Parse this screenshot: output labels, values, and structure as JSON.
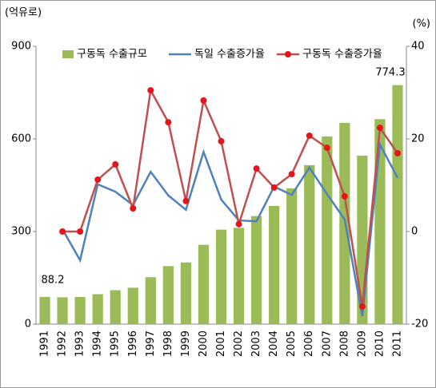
{
  "chart_data": {
    "type": "combo",
    "y_label": "(억유로)",
    "y2_label": "(%)",
    "categories": [
      "1991",
      "1992",
      "1993",
      "1994",
      "1995",
      "1996",
      "1997",
      "1998",
      "1999",
      "2000",
      "2001",
      "2002",
      "2003",
      "2004",
      "2005",
      "2006",
      "2007",
      "2008",
      "2009",
      "2010",
      "2011"
    ],
    "series": [
      {
        "name": "구동독 수출규모",
        "type": "bar",
        "color": "#9bbb59",
        "values": [
          88.2,
          87,
          88,
          97,
          110,
          118,
          152,
          188,
          200,
          257,
          306,
          312,
          350,
          383,
          440,
          515,
          608,
          652,
          546,
          664,
          774.3
        ]
      },
      {
        "name": "독일 수출증가율",
        "type": "line",
        "axis": "y2",
        "color": "#4f81bd",
        "values": [
          null,
          0.5,
          -6.2,
          10.2,
          8.6,
          5.7,
          12.9,
          7.8,
          4.7,
          17.2,
          6.9,
          2.4,
          2.2,
          9.7,
          7.9,
          13.8,
          8.1,
          2.6,
          -18.3,
          18.8,
          11.6
        ]
      },
      {
        "name": "구동독 수출증가율",
        "type": "line",
        "axis": "y2",
        "color": "#c0504d",
        "marker_color": "#e8141b",
        "values": [
          null,
          0,
          0,
          11.2,
          14.5,
          5,
          30.5,
          23.6,
          6.6,
          28.3,
          19.5,
          1.6,
          13.6,
          9.5,
          12.4,
          20.7,
          18.1,
          7.6,
          -16.2,
          22.4,
          16.9
        ]
      }
    ],
    "ylim": [
      0,
      900
    ],
    "yticks": [
      0,
      300,
      600,
      900
    ],
    "y2lim": [
      -20,
      40
    ],
    "y2ticks": [
      -20,
      0,
      20,
      40
    ],
    "grid": false,
    "legend": "top"
  }
}
